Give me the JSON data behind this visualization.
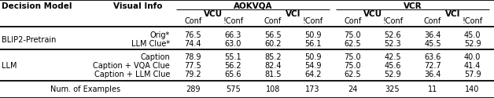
{
  "title_aokvqa": "AOKVQA",
  "title_vcr": "VCR",
  "col_headers_l2": [
    "VCU",
    "VCI",
    "VCU",
    "VCI"
  ],
  "col_headers_l3": [
    "Conf",
    "!Conf",
    "Conf",
    "!Conf",
    "Conf",
    "!Conf",
    "Conf",
    "!Conf"
  ],
  "row_header1": "Decision Model",
  "row_header2": "Visual Info",
  "sections": [
    {
      "model": "BLIP2-Pretrain",
      "rows": [
        {
          "visual_info": "Orig*",
          "values": [
            "76.5",
            "66.3",
            "56.5",
            "50.9",
            "75.0",
            "52.6",
            "36.4",
            "45.0"
          ]
        },
        {
          "visual_info": "LLM Clue*",
          "values": [
            "74.4",
            "63.0",
            "60.2",
            "56.1",
            "62.5",
            "52.3",
            "45.5",
            "52.9"
          ]
        }
      ]
    },
    {
      "model": "LLM",
      "rows": [
        {
          "visual_info": "Caption",
          "values": [
            "78.9",
            "55.1",
            "85.2",
            "50.9",
            "75.0",
            "42.5",
            "63.6",
            "40.0"
          ]
        },
        {
          "visual_info": "Caption + VQA Clue",
          "values": [
            "77.5",
            "56.2",
            "82.4",
            "54.9",
            "75.0",
            "45.6",
            "72.7",
            "41.4"
          ]
        },
        {
          "visual_info": "Caption + LLM Clue",
          "values": [
            "79.2",
            "65.6",
            "81.5",
            "64.2",
            "62.5",
            "52.9",
            "36.4",
            "57.9"
          ]
        }
      ]
    }
  ],
  "footer_label": "Num. of Examples",
  "footer_values": [
    "289",
    "575",
    "108",
    "173",
    "24",
    "325",
    "11",
    "140"
  ],
  "fontsize": 7.0,
  "fontsize_header": 7.5
}
